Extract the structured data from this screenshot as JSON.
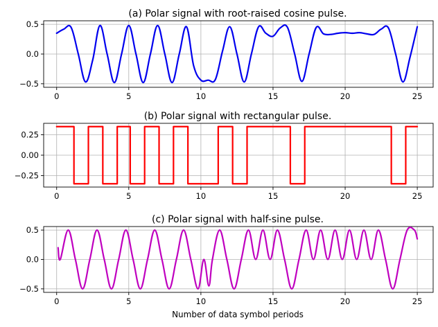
{
  "chart_data": [
    {
      "type": "line",
      "title": "(a) Polar signal with root-raised cosine pulse.",
      "xlabel": "",
      "ylabel": "",
      "xlim": [
        -0.9,
        26.1
      ],
      "ylim": [
        -0.56,
        0.56
      ],
      "xticks": [
        0,
        5,
        10,
        15,
        20,
        25
      ],
      "yticks": [
        0.5,
        0.0,
        -0.5
      ],
      "ytick_labels": [
        "0.5",
        "0.0",
        "−0.5"
      ],
      "grid": true,
      "series": [
        {
          "color": "#0000ee",
          "x": [
            0,
            0.5,
            1,
            1.5,
            2,
            2.5,
            3,
            3.5,
            4,
            4.5,
            5,
            5.5,
            6,
            6.5,
            7,
            7.5,
            8,
            8.5,
            9,
            9.5,
            10,
            10.5,
            11,
            11.5,
            12,
            12.5,
            13,
            13.5,
            14,
            14.5,
            15,
            15.5,
            16,
            16.5,
            17,
            17.5,
            18,
            18.5,
            19,
            19.5,
            20,
            20.5,
            21,
            21.5,
            22,
            22.5,
            23,
            23.5,
            24,
            24.5,
            25
          ],
          "y": [
            0.35,
            0.42,
            0.45,
            0.0,
            -0.47,
            -0.1,
            0.48,
            0.0,
            -0.48,
            0.0,
            0.48,
            0.0,
            -0.48,
            0.0,
            0.48,
            0.0,
            -0.48,
            0.0,
            0.46,
            -0.2,
            -0.44,
            -0.44,
            -0.43,
            0.05,
            0.46,
            0.0,
            -0.47,
            0.0,
            0.46,
            0.35,
            0.3,
            0.44,
            0.45,
            0.0,
            -0.46,
            0.0,
            0.45,
            0.34,
            0.33,
            0.35,
            0.36,
            0.35,
            0.36,
            0.34,
            0.33,
            0.42,
            0.44,
            0.0,
            -0.47,
            -0.05,
            0.46
          ]
        }
      ]
    },
    {
      "type": "line",
      "title": "(b) Polar signal with rectangular pulse.",
      "xlabel": "",
      "ylabel": "",
      "xlim": [
        -0.9,
        26.1
      ],
      "ylim": [
        -0.39,
        0.39
      ],
      "xticks": [
        0,
        5,
        10,
        15,
        20,
        25
      ],
      "yticks": [
        0.25,
        0.0,
        -0.25
      ],
      "ytick_labels": [
        "0.25",
        "0.00",
        "−0.25"
      ],
      "grid": true,
      "series": [
        {
          "color": "#ff0000",
          "x": [
            0,
            1.2,
            1.2,
            2.2,
            2.2,
            3.2,
            3.2,
            4.2,
            4.2,
            5.1,
            5.1,
            6.1,
            6.1,
            7.1,
            7.1,
            8.1,
            8.1,
            9.1,
            9.1,
            11.2,
            11.2,
            12.2,
            12.2,
            13.2,
            13.2,
            16.2,
            16.2,
            17.2,
            17.2,
            23.2,
            23.2,
            24.2,
            24.2,
            25
          ],
          "y": [
            0.35,
            0.35,
            -0.35,
            -0.35,
            0.35,
            0.35,
            -0.35,
            -0.35,
            0.35,
            0.35,
            -0.35,
            -0.35,
            0.35,
            0.35,
            -0.35,
            -0.35,
            0.35,
            0.35,
            -0.35,
            -0.35,
            0.35,
            0.35,
            -0.35,
            -0.35,
            0.35,
            0.35,
            -0.35,
            -0.35,
            0.35,
            0.35,
            -0.35,
            -0.35,
            0.35,
            0.35
          ]
        }
      ]
    },
    {
      "type": "line",
      "title": "(c) Polar signal with half-sine pulse.",
      "xlabel": "Number of data symbol periods",
      "ylabel": "",
      "xlim": [
        -0.9,
        26.1
      ],
      "ylim": [
        -0.56,
        0.56
      ],
      "xticks": [
        0,
        5,
        10,
        15,
        20,
        25
      ],
      "yticks": [
        0.5,
        0.0,
        -0.5
      ],
      "ytick_labels": [
        "0.5",
        "0.0",
        "−0.5"
      ],
      "grid": true,
      "series": [
        {
          "color": "#bf00bf",
          "x": [
            0.1,
            0.25,
            0.8,
            1.3,
            1.8,
            2.3,
            2.8,
            3.3,
            3.8,
            4.3,
            4.8,
            5.3,
            5.8,
            6.3,
            6.8,
            7.3,
            7.8,
            8.3,
            8.8,
            9.3,
            9.8,
            10.2,
            10.55,
            10.8,
            11.3,
            11.8,
            12.3,
            12.8,
            13.3,
            13.8,
            14.3,
            14.8,
            15.3,
            15.8,
            16.3,
            16.8,
            17.3,
            17.8,
            18.3,
            18.8,
            19.3,
            19.8,
            20.3,
            20.8,
            21.3,
            21.8,
            22.3,
            22.8,
            23.3,
            23.8,
            24.3,
            24.8,
            25
          ],
          "y": [
            0.2,
            0.0,
            0.5,
            0.0,
            -0.5,
            0.0,
            0.5,
            0.0,
            -0.5,
            0.0,
            0.5,
            0.0,
            -0.5,
            0.0,
            0.5,
            0.0,
            -0.5,
            0.0,
            0.5,
            0.0,
            -0.5,
            0.0,
            -0.45,
            0.0,
            0.5,
            0.0,
            -0.5,
            0.0,
            0.5,
            0.0,
            0.5,
            0.0,
            0.5,
            0.0,
            -0.5,
            0.0,
            0.5,
            0.0,
            0.5,
            0.0,
            0.5,
            0.0,
            0.5,
            0.0,
            0.5,
            0.0,
            0.5,
            0.0,
            -0.5,
            0.0,
            0.5,
            0.5,
            0.35
          ]
        }
      ]
    }
  ]
}
